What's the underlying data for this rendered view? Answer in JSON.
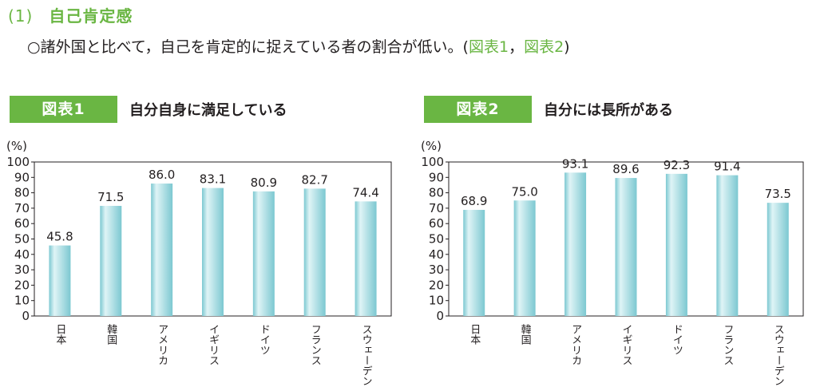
{
  "section": {
    "number": "(1)",
    "title": "自己肯定感"
  },
  "lead": {
    "text": "○諸外国と比べて，自己を肯定的に捉えている者の割合が低い。(",
    "ref1": "図表1",
    "sep": "，",
    "ref2": "図表2",
    "close": ")"
  },
  "colors": {
    "accent": "#6ab643",
    "bar_light": "#dff4f6",
    "bar_dark": "#7cc8d1"
  },
  "chart_data": [
    {
      "type": "bar",
      "badge": "図表1",
      "title": "自分自身に満足している",
      "ylabel": "(%)",
      "ylim": [
        0,
        100
      ],
      "yticks": [
        0,
        10,
        20,
        30,
        40,
        50,
        60,
        70,
        80,
        90,
        100
      ],
      "categories": [
        "日本",
        "韓国",
        "アメリカ",
        "イギリス",
        "ドイツ",
        "フランス",
        "スウェーデン"
      ],
      "values": [
        45.8,
        71.5,
        86.0,
        83.1,
        80.9,
        82.7,
        74.4
      ],
      "value_labels": [
        "45.8",
        "71.5",
        "86.0",
        "83.1",
        "80.9",
        "82.7",
        "74.4"
      ]
    },
    {
      "type": "bar",
      "badge": "図表2",
      "title": "自分には長所がある",
      "ylabel": "(%)",
      "ylim": [
        0,
        100
      ],
      "yticks": [
        0,
        10,
        20,
        30,
        40,
        50,
        60,
        70,
        80,
        90,
        100
      ],
      "categories": [
        "日本",
        "韓国",
        "アメリカ",
        "イギリス",
        "ドイツ",
        "フランス",
        "スウェーデン"
      ],
      "values": [
        68.9,
        75.0,
        93.1,
        89.6,
        92.3,
        91.4,
        73.5
      ],
      "value_labels": [
        "68.9",
        "75.0",
        "93.1",
        "89.6",
        "92.3",
        "91.4",
        "73.5"
      ]
    }
  ]
}
